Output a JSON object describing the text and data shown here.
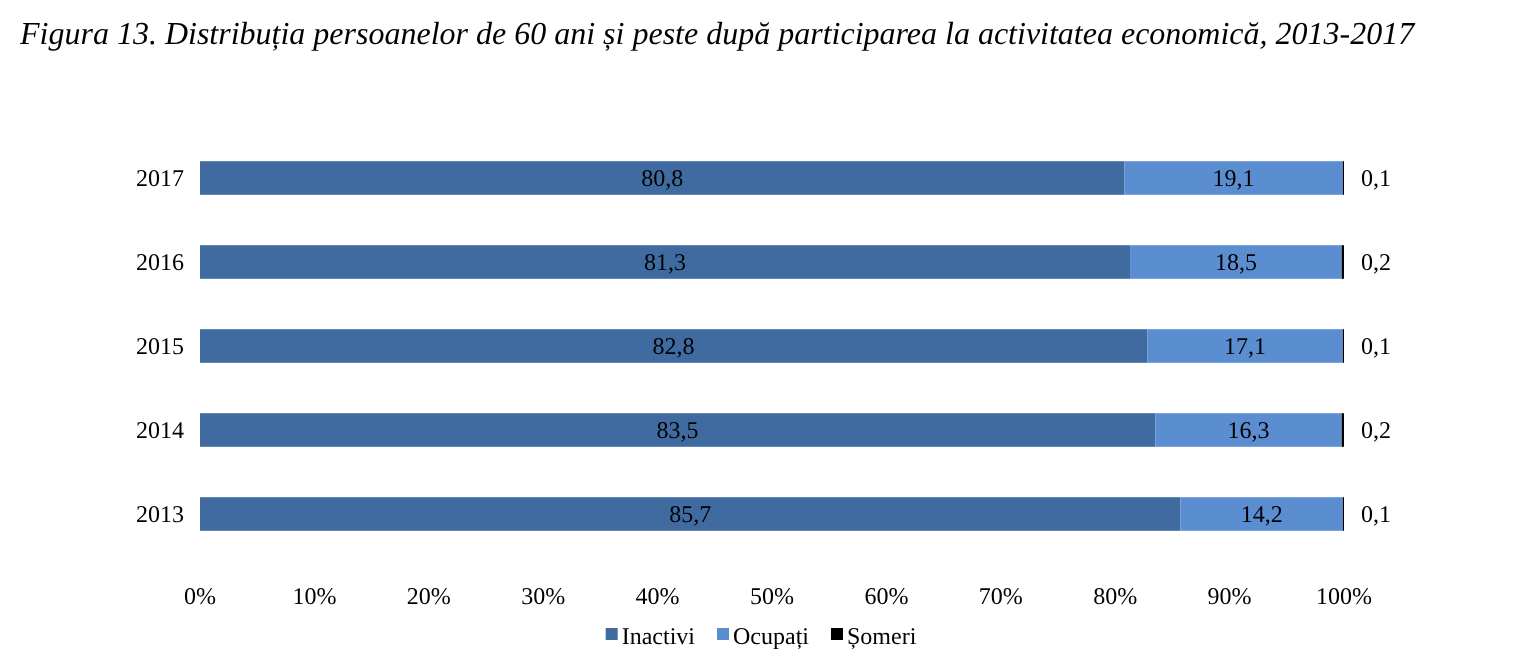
{
  "chart_data": {
    "type": "bar",
    "orientation": "horizontal",
    "stacked": true,
    "title": "Figura 13. Distribuția persoanelor de 60 ani și peste după participarea la activitatea economică, 2013-2017",
    "categories": [
      "2017",
      "2016",
      "2015",
      "2014",
      "2013"
    ],
    "series": [
      {
        "name": "Inactivi",
        "color": "#3f6ba1",
        "values": [
          80.8,
          81.3,
          82.8,
          83.5,
          85.7
        ],
        "value_labels": [
          "80,8",
          "81,3",
          "82,8",
          "83,5",
          "85,7"
        ]
      },
      {
        "name": "Ocupați",
        "color": "#5b8ed0",
        "values": [
          19.1,
          18.5,
          17.1,
          16.3,
          14.2
        ],
        "value_labels": [
          "19,1",
          "18,5",
          "17,1",
          "16,3",
          "14,2"
        ]
      },
      {
        "name": "Șomeri",
        "color": "#000000",
        "values": [
          0.1,
          0.2,
          0.1,
          0.2,
          0.1
        ],
        "value_labels": [
          "0,1",
          "0,2",
          "0,1",
          "0,2",
          "0,1"
        ]
      }
    ],
    "xlim": [
      0,
      100
    ],
    "xticks": [
      {
        "value": 0,
        "label": "0%"
      },
      {
        "value": 10,
        "label": "10%"
      },
      {
        "value": 20,
        "label": "20%"
      },
      {
        "value": 30,
        "label": "30%"
      },
      {
        "value": 40,
        "label": "40%"
      },
      {
        "value": 50,
        "label": "50%"
      },
      {
        "value": 60,
        "label": "60%"
      },
      {
        "value": 70,
        "label": "70%"
      },
      {
        "value": 80,
        "label": "80%"
      },
      {
        "value": 90,
        "label": "90%"
      },
      {
        "value": 100,
        "label": "100%"
      }
    ],
    "grid": false,
    "legend": "bottom"
  }
}
